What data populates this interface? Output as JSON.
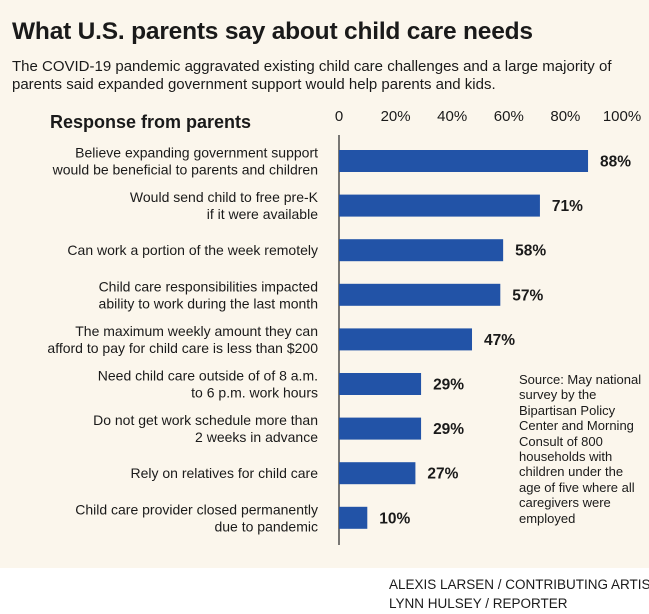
{
  "title": "What U.S. parents say about child care needs",
  "subtitle": "The COVID-19 pandemic aggravated existing child care challenges and a large majority of parents said expanded government support would help parents and kids.",
  "response_heading": "Response from parents",
  "source_text": "Source: May national survey by the Bipartisan Policy Center and Morning Consult of 800 households with children under the age of five where all caregivers were employed",
  "credits": {
    "artist": "ALEXIS LARSEN / CONTRIBUTING ARTIST",
    "reporter": "LYNN HULSEY / REPORTER"
  },
  "colors": {
    "bar": "#2253a7",
    "panel_bg": "#fbf6ec"
  },
  "chart_data": {
    "type": "bar",
    "orientation": "horizontal",
    "title": "What U.S. parents say about child care needs",
    "xlabel": "",
    "ylabel": "Response from parents",
    "xlim": [
      0,
      100
    ],
    "ticks": [
      0,
      20,
      40,
      60,
      80,
      100
    ],
    "tick_labels": [
      "0",
      "20%",
      "40%",
      "60%",
      "80%",
      "100%"
    ],
    "grid": false,
    "categories": [
      [
        "Believe expanding government support",
        "would be beneficial to parents and children"
      ],
      [
        "Would send child to free pre-K",
        "if it were available"
      ],
      [
        "Can work a portion of the week remotely"
      ],
      [
        "Child care responsibilities impacted",
        "ability to work during the last month"
      ],
      [
        "The maximum weekly amount they can",
        "afford to pay for child care is less than $200"
      ],
      [
        "Need child care outside of of 8 a.m.",
        "to 6 p.m. work hours"
      ],
      [
        "Do not get work schedule more than",
        "2 weeks in advance"
      ],
      [
        "Rely on relatives for child care"
      ],
      [
        "Child care provider closed permanently",
        "due to pandemic"
      ]
    ],
    "values": [
      88,
      71,
      58,
      57,
      47,
      29,
      29,
      27,
      10
    ],
    "value_labels": [
      "88%",
      "71%",
      "58%",
      "57%",
      "47%",
      "29%",
      "29%",
      "27%",
      "10%"
    ]
  }
}
